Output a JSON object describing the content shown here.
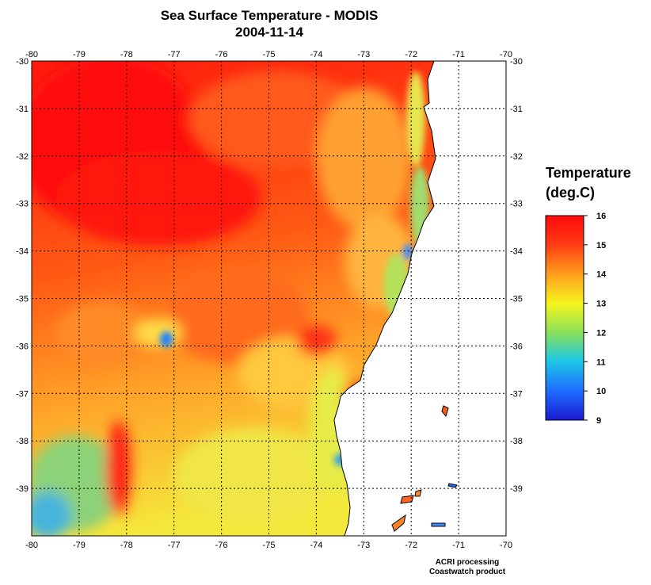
{
  "header": {
    "title": "Sea Surface Temperature - MODIS",
    "date": "2004-11-14"
  },
  "map": {
    "lon_range": [
      -80,
      -70
    ],
    "lat_range": [
      -30,
      -40
    ],
    "lon_ticks": [
      "-80",
      "-79",
      "-78",
      "-77",
      "-76",
      "-75",
      "-74",
      "-73",
      "-72",
      "-71",
      "-70"
    ],
    "lat_ticks": [
      "-30",
      "-31",
      "-32",
      "-33",
      "-34",
      "-35",
      "-36",
      "-37",
      "-38",
      "-39"
    ],
    "grid": true,
    "land_color": "#ffffff",
    "coastline_color": "#000000"
  },
  "legend": {
    "title_line1": "Temperature",
    "title_line2": "(deg.C)",
    "ticks": [
      "16",
      "15",
      "14",
      "13",
      "12",
      "11",
      "10",
      "9"
    ],
    "min": 9,
    "max": 16,
    "colors": [
      "#1a1ad0",
      "#1e6bff",
      "#1ec8e6",
      "#8be05a",
      "#f5f51e",
      "#ffa01e",
      "#ff3c14",
      "#ff0a0a"
    ]
  },
  "credits": {
    "line1": "ACRI processing",
    "line2": "Coastwatch product"
  }
}
